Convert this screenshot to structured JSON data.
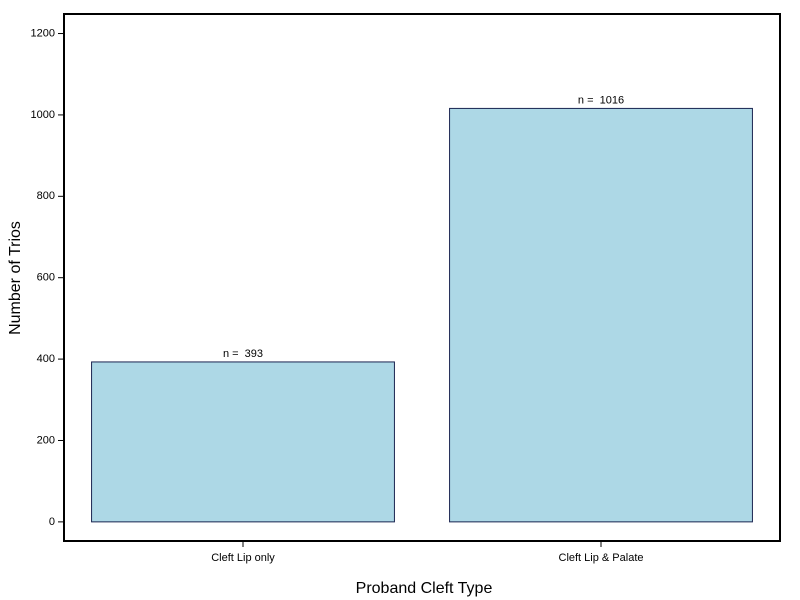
{
  "chart_data": {
    "type": "bar",
    "x_label": "Proband Cleft Type",
    "y_label": "Number of Trios",
    "categories": [
      "Cleft Lip only",
      "Cleft Lip & Palate"
    ],
    "values": [
      393,
      1016
    ],
    "value_labels": [
      "n =  393",
      "n =  1016"
    ],
    "color": "#add8e6",
    "ylim": [
      -47,
      1248
    ],
    "yticks": [
      0,
      200,
      400,
      600,
      800,
      1000,
      1200
    ],
    "grid": false
  }
}
